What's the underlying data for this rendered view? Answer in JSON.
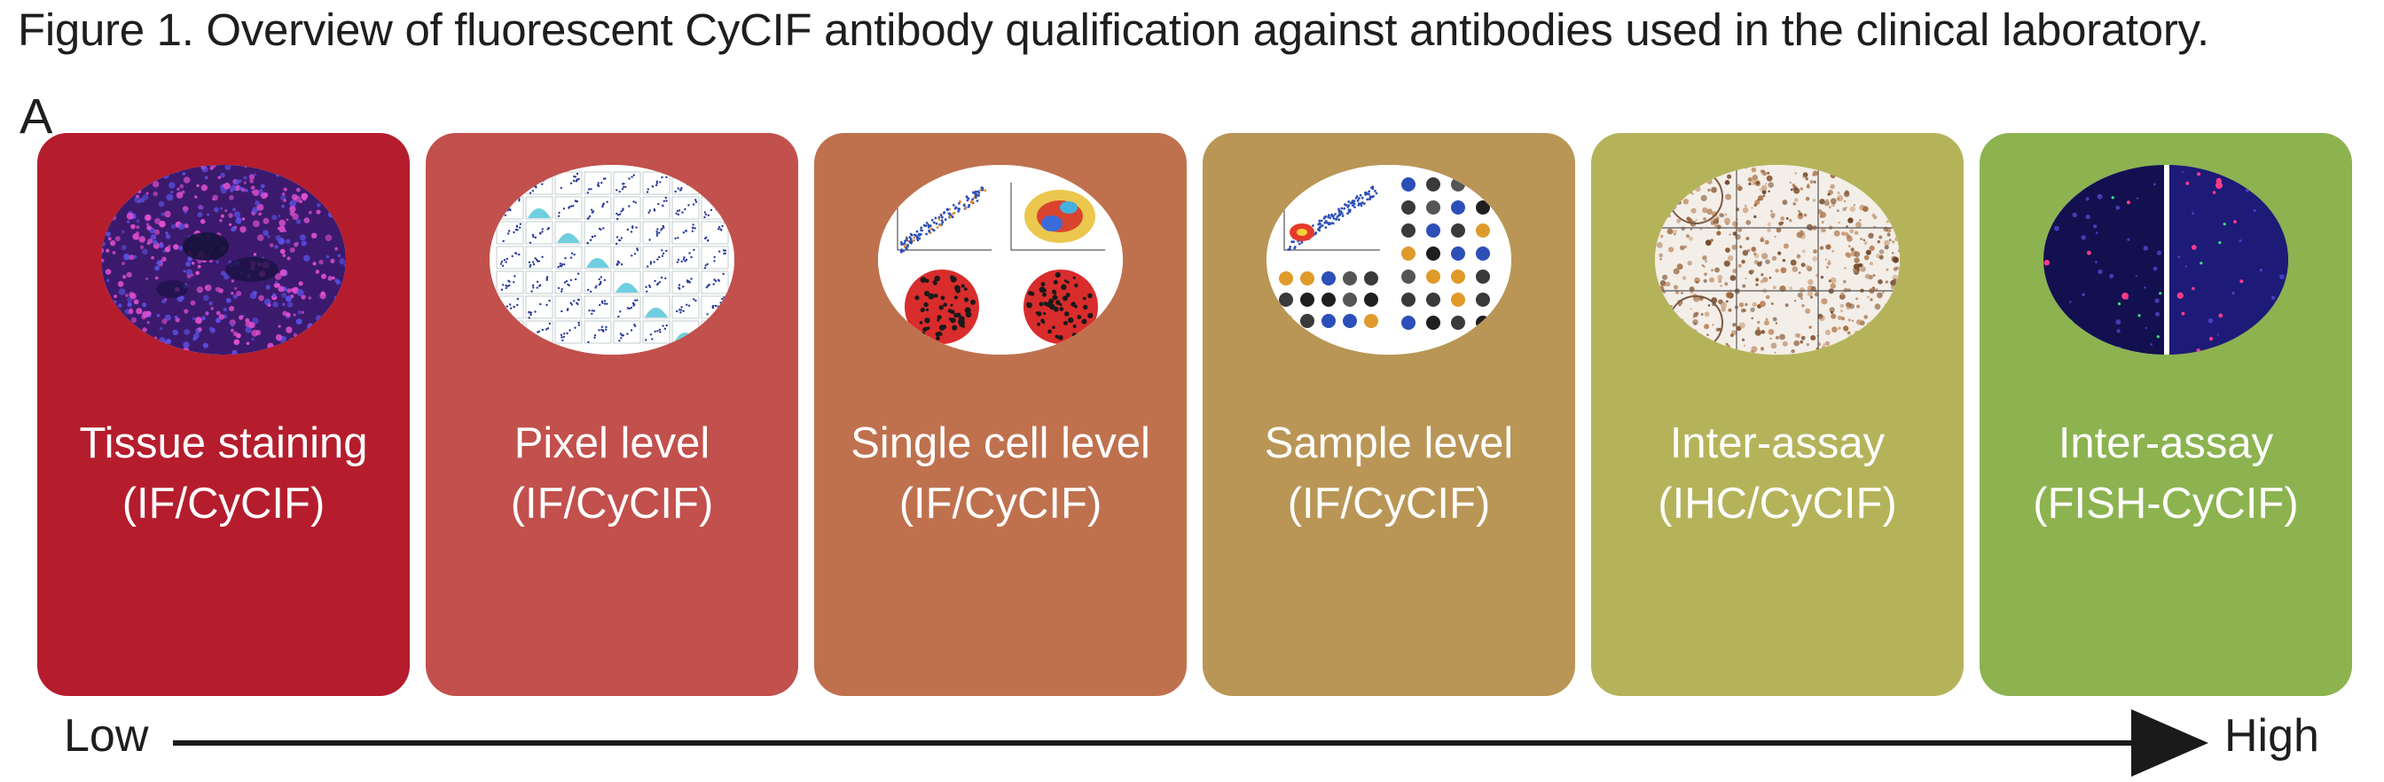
{
  "caption": "Figure 1. Overview of fluorescent CyCIF antibody qualification against antibodies used in the clinical laboratory.",
  "panel_letter": "A",
  "cards": [
    {
      "line1": "Tissue staining",
      "line2": "(IF/CyCIF)",
      "color": "#b51d2d",
      "image": "fluorescent-tissue-image"
    },
    {
      "line1": "Pixel level",
      "line2": "(IF/CyCIF)",
      "color": "#c2504c",
      "image": "scatter-matrix-image"
    },
    {
      "line1": "Single cell level",
      "line2": "(IF/CyCIF)",
      "color": "#bf714e",
      "image": "single-cell-plots-image"
    },
    {
      "line1": "Sample level",
      "line2": "(IF/CyCIF)",
      "color": "#b99656",
      "image": "sample-level-plots-image"
    },
    {
      "line1": "Inter-assay",
      "line2": "(IHC/CyCIF)",
      "color": "#b5b35a",
      "image": "ihc-core-grid-image"
    },
    {
      "line1": "Inter-assay",
      "line2": "(FISH-CyCIF)",
      "color": "#8cb350",
      "image": "fish-fluorescence-image"
    }
  ],
  "axis": {
    "low": "Low",
    "high": "High"
  }
}
